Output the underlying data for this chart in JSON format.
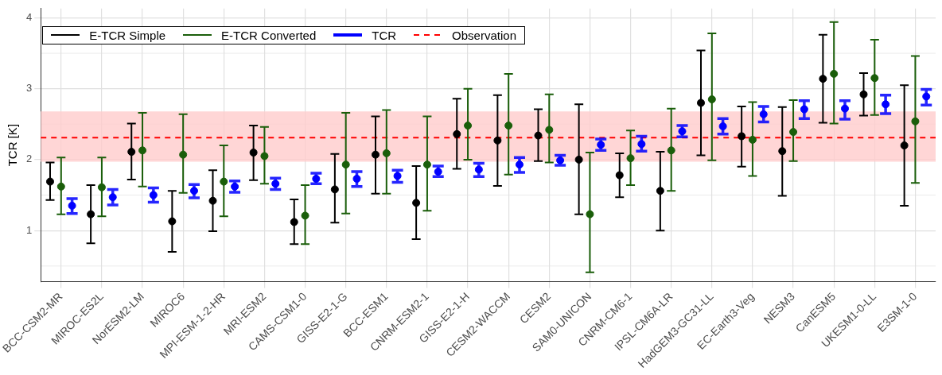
{
  "chart_data": {
    "type": "scatter",
    "ylabel": "TCR [K]",
    "categories": [
      "BCC-CSM2-MR",
      "MIROC-ES2L",
      "NorESM2-LM",
      "MIROC6",
      "MPI-ESM-1-2-HR",
      "MRI-ESM2",
      "CAMS-CSM1-0",
      "GISS-E2-1-G",
      "BCC-ESM1",
      "CNRM-ESM2-1",
      "GISS-E2-1-H",
      "CESM2-WACCM",
      "CESM2",
      "SAM0-UNICON",
      "CNRM-CM6-1",
      "IPSL-CM6A-LR",
      "HadGEM3-GC31-LL",
      "EC-Earth3-Veg",
      "NESM3",
      "CanESM5",
      "UKESM1-0-LL",
      "E3SM-1-0"
    ],
    "series": [
      {
        "name": "E-TCR Simple",
        "color": "#000000",
        "values": [
          1.69,
          1.23,
          2.11,
          1.13,
          1.42,
          2.1,
          1.12,
          1.58,
          2.07,
          1.39,
          2.36,
          2.27,
          2.34,
          2.0,
          1.78,
          1.56,
          2.8,
          2.33,
          2.12,
          3.14,
          2.92,
          2.2
        ],
        "errors": [
          [
            1.43,
            1.96
          ],
          [
            0.82,
            1.64
          ],
          [
            1.72,
            2.51
          ],
          [
            0.7,
            1.56
          ],
          [
            0.99,
            1.85
          ],
          [
            1.71,
            2.48
          ],
          [
            0.81,
            1.44
          ],
          [
            1.11,
            2.08
          ],
          [
            1.52,
            2.61
          ],
          [
            0.88,
            1.91
          ],
          [
            1.87,
            2.86
          ],
          [
            1.63,
            2.91
          ],
          [
            1.98,
            2.71
          ],
          [
            1.23,
            2.78
          ],
          [
            1.47,
            2.09
          ],
          [
            1.0,
            2.11
          ],
          [
            2.06,
            3.54
          ],
          [
            1.9,
            2.75
          ],
          [
            1.49,
            2.74
          ],
          [
            2.52,
            3.76
          ],
          [
            2.62,
            3.22
          ],
          [
            1.35,
            3.05
          ]
        ]
      },
      {
        "name": "E-TCR Converted",
        "color": "#1a5e0a",
        "values": [
          1.62,
          1.61,
          2.13,
          2.07,
          1.69,
          2.05,
          1.21,
          1.93,
          2.09,
          1.93,
          2.48,
          2.48,
          2.42,
          1.23,
          2.02,
          2.13,
          2.85,
          2.28,
          2.39,
          3.21,
          3.15,
          2.54
        ],
        "errors": [
          [
            1.23,
            2.03
          ],
          [
            1.2,
            2.03
          ],
          [
            1.62,
            2.66
          ],
          [
            1.53,
            2.64
          ],
          [
            1.2,
            2.2
          ],
          [
            1.66,
            2.46
          ],
          [
            0.81,
            1.64
          ],
          [
            1.24,
            2.66
          ],
          [
            1.52,
            2.7
          ],
          [
            1.28,
            2.61
          ],
          [
            2.0,
            3.0
          ],
          [
            1.79,
            3.21
          ],
          [
            1.96,
            2.92
          ],
          [
            0.41,
            2.1
          ],
          [
            1.64,
            2.41
          ],
          [
            1.56,
            2.72
          ],
          [
            1.99,
            3.78
          ],
          [
            1.77,
            2.81
          ],
          [
            1.98,
            2.84
          ],
          [
            2.51,
            3.94
          ],
          [
            2.63,
            3.69
          ],
          [
            1.67,
            3.46
          ]
        ]
      },
      {
        "name": "TCR",
        "color": "#0000ff",
        "values": [
          1.35,
          1.47,
          1.5,
          1.56,
          1.62,
          1.66,
          1.73,
          1.73,
          1.77,
          1.83,
          1.86,
          1.93,
          1.99,
          2.21,
          2.22,
          2.4,
          2.47,
          2.64,
          2.71,
          2.72,
          2.78,
          2.89
        ],
        "errors": [
          [
            1.24,
            1.45
          ],
          [
            1.36,
            1.58
          ],
          [
            1.4,
            1.6
          ],
          [
            1.46,
            1.65
          ],
          [
            1.54,
            1.7
          ],
          [
            1.58,
            1.74
          ],
          [
            1.66,
            1.81
          ],
          [
            1.62,
            1.83
          ],
          [
            1.68,
            1.85
          ],
          [
            1.76,
            1.91
          ],
          [
            1.76,
            1.95
          ],
          [
            1.82,
            2.03
          ],
          [
            1.92,
            2.06
          ],
          [
            2.13,
            2.29
          ],
          [
            2.12,
            2.33
          ],
          [
            2.32,
            2.48
          ],
          [
            2.36,
            2.58
          ],
          [
            2.53,
            2.75
          ],
          [
            2.58,
            2.83
          ],
          [
            2.57,
            2.83
          ],
          [
            2.65,
            2.91
          ],
          [
            2.77,
            2.99
          ]
        ]
      }
    ],
    "ref_lines": [
      {
        "axis": "y",
        "value": 2.31,
        "label": "Observation",
        "color": "#ff0000",
        "line_style": "dashed"
      }
    ],
    "bands": [
      {
        "axis": "y",
        "from": 1.97,
        "to": 2.68,
        "color": "#ffcccc"
      }
    ],
    "ylim": [
      0.28,
      4.13
    ],
    "yticks": [
      1,
      2,
      3,
      4
    ],
    "grid": true,
    "legend": "top left",
    "marker": "circle"
  }
}
